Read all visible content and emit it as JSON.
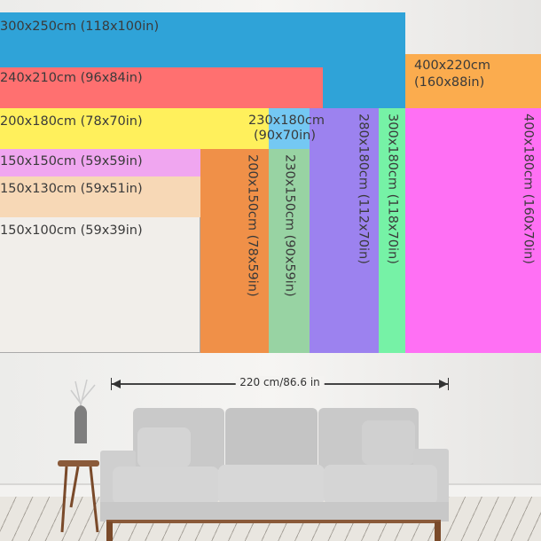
{
  "sizes": [
    {
      "label": "300x250cm (118x100in)",
      "color": "#2fa3d8"
    },
    {
      "label": "400x220cm",
      "label2": "(160x88in)",
      "color": "#fbac4e"
    },
    {
      "label": "240x210cm (96x84in)",
      "color": "#ff7070"
    },
    {
      "label": "200x180cm (78x70in)",
      "color": "#fff05c"
    },
    {
      "label": "230x180cm",
      "label2": "(90x70in)",
      "color": "#74c8f3"
    },
    {
      "label": "280x180cm (112x70in)",
      "color": "#9c82ef"
    },
    {
      "label": "300x180cm (118x70in)",
      "color": "#76f2a6"
    },
    {
      "label": "400x180cm (160x70in)",
      "color": "#ff70f4"
    },
    {
      "label": "150x150cm (59x59in)",
      "color": "#f0a6f0"
    },
    {
      "label": "150x130cm (59x51in)",
      "color": "#f7d8b6"
    },
    {
      "label": "150x100cm (59x39in)",
      "color": "#f1eeea"
    },
    {
      "label": "200x150cm (78x59in)",
      "color": "#f09048"
    },
    {
      "label": "230x150cm (90x59in)",
      "color": "#98d3a3"
    }
  ],
  "sofa_dimension": "220 cm/86.6 in"
}
